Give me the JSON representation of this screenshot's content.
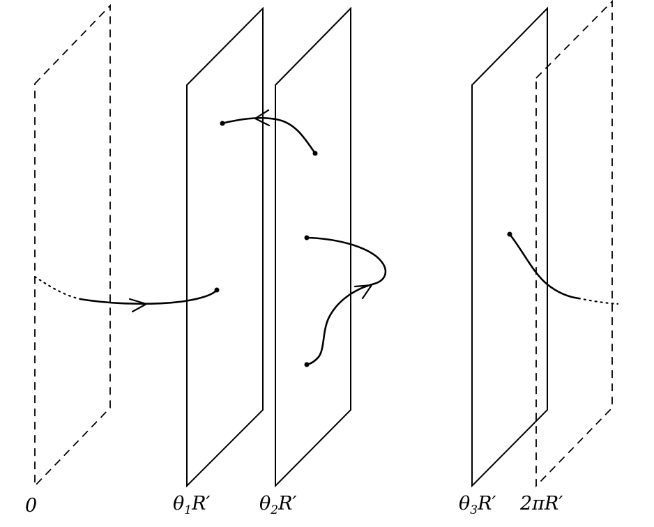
{
  "labels": {
    "zero": "0",
    "theta1": {
      "main": "θ",
      "sub": "1",
      "tail": "R′"
    },
    "theta2": {
      "main": "θ",
      "sub": "2",
      "tail": "R′"
    },
    "theta3": {
      "main": "θ",
      "sub": "3",
      "tail": "R′"
    },
    "two_pi": "2πR′"
  }
}
